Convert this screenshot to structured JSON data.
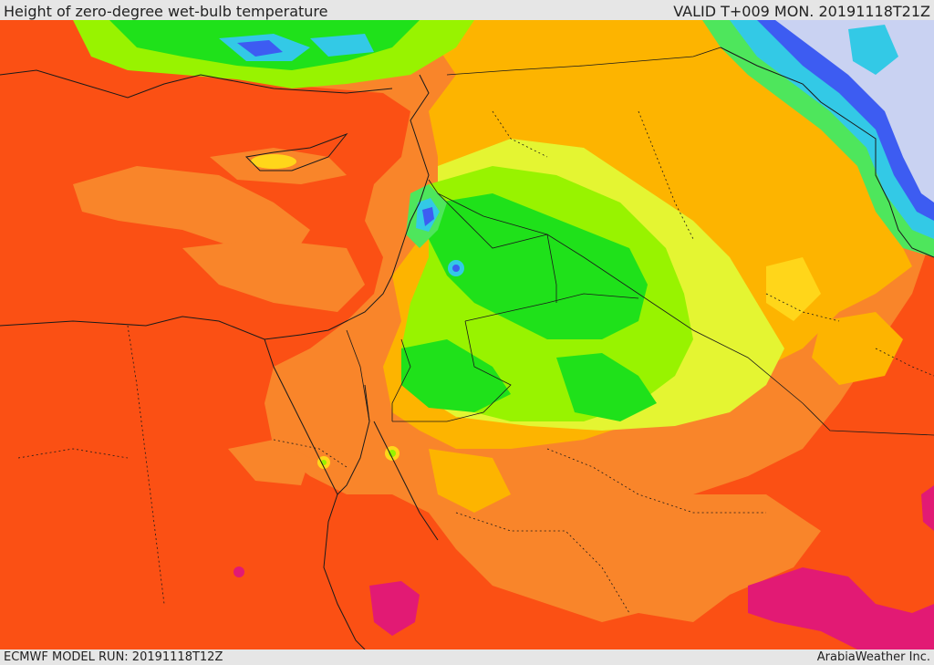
{
  "header": {
    "title": "Height of zero-degree wet-bulb temperature",
    "valid": "VALID T+009 MON. 20191118T21Z"
  },
  "footer": {
    "model_run": "ECMWF MODEL RUN: 20191118T12Z",
    "brand": "ArabiaWeather Inc."
  },
  "colors": {
    "base_red": "#fb5014",
    "orange": "#f9852a",
    "amber": "#fdb400",
    "yellow": "#ffd61a",
    "yellow_green": "#e4f532",
    "lime": "#98f300",
    "green": "#1fe11a",
    "light_green": "#4ee65c",
    "cyan": "#33c9e6",
    "blue": "#3d5cf2",
    "pale_blue": "#c9d2f2",
    "magenta": "#e21a74"
  }
}
